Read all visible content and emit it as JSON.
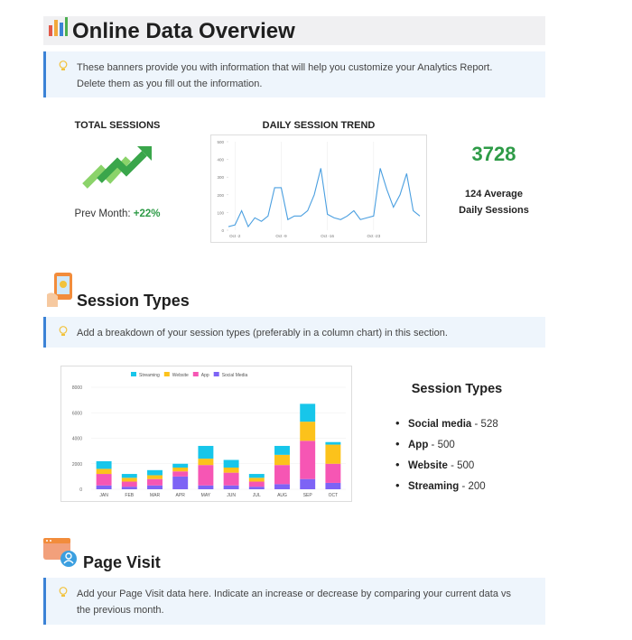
{
  "header": {
    "title": "Online Data Overview"
  },
  "banners": [
    {
      "text": "These banners provide you with information that will help you customize your Analytics Report. Delete them as you fill out the information."
    },
    {
      "text": "Add a breakdown of your session types (preferably in a column chart) in this section."
    },
    {
      "text": "Add your Page Visit data here. Indicate an increase or decrease by comparing your current data vs the previous month."
    }
  ],
  "summary": {
    "total_sessions_label": "TOTAL SESSIONS",
    "prev_month_label": "Prev Month:",
    "prev_month_change": "+22%",
    "total": "3728",
    "average": "124 Average Daily Sessions"
  },
  "daily_trend": {
    "type": "line",
    "title": "DAILY SESSION TREND",
    "categories": [
      null,
      "Oct -2",
      null,
      null,
      null,
      null,
      null,
      null,
      "Oct -9",
      null,
      null,
      null,
      null,
      null,
      null,
      "Oct -16",
      null,
      null,
      null,
      null,
      null,
      null,
      "Oct -23",
      null,
      null,
      null,
      null,
      null,
      null,
      null
    ],
    "values": [
      20,
      30,
      110,
      20,
      70,
      50,
      80,
      240,
      240,
      60,
      80,
      80,
      110,
      200,
      350,
      90,
      70,
      60,
      80,
      110,
      60,
      70,
      80,
      350,
      230,
      130,
      200,
      320,
      110,
      80
    ],
    "color": "#4a9fe0",
    "ylim": [
      0,
      500
    ],
    "yticks": [
      0,
      100,
      200,
      300,
      400,
      500
    ],
    "grid": true
  },
  "sections": [
    {
      "title": "Session Types"
    },
    {
      "title": "Page Visit"
    }
  ],
  "session_chart": {
    "type": "bar",
    "stacked": true,
    "categories": [
      "JAN",
      "FEB",
      "MAR",
      "APR",
      "MAY",
      "JUN",
      "JUL",
      "AUG",
      "SEP",
      "OCT"
    ],
    "series": [
      {
        "name": "Streaming",
        "color": "#17c6ea",
        "values": [
          600,
          300,
          400,
          300,
          1000,
          600,
          300,
          700,
          1400,
          200
        ]
      },
      {
        "name": "Website",
        "color": "#fcc21b",
        "values": [
          400,
          300,
          300,
          300,
          500,
          400,
          300,
          800,
          1500,
          1500
        ]
      },
      {
        "name": "App",
        "color": "#f656b4",
        "values": [
          900,
          400,
          500,
          400,
          1600,
          1000,
          400,
          1500,
          3000,
          1500
        ]
      },
      {
        "name": "Social Media",
        "color": "#7d63f5",
        "values": [
          300,
          200,
          300,
          1000,
          300,
          300,
          200,
          400,
          800,
          500
        ]
      }
    ],
    "ylim": [
      0,
      8000
    ],
    "yticks": [
      0,
      2000,
      4000,
      6000,
      8000
    ]
  },
  "session_list": {
    "title": "Session Types",
    "items": [
      {
        "name": "Social media",
        "value": 528
      },
      {
        "name": "App",
        "value": 500
      },
      {
        "name": "Website",
        "value": 500
      },
      {
        "name": "Streaming",
        "value": 200
      }
    ]
  }
}
